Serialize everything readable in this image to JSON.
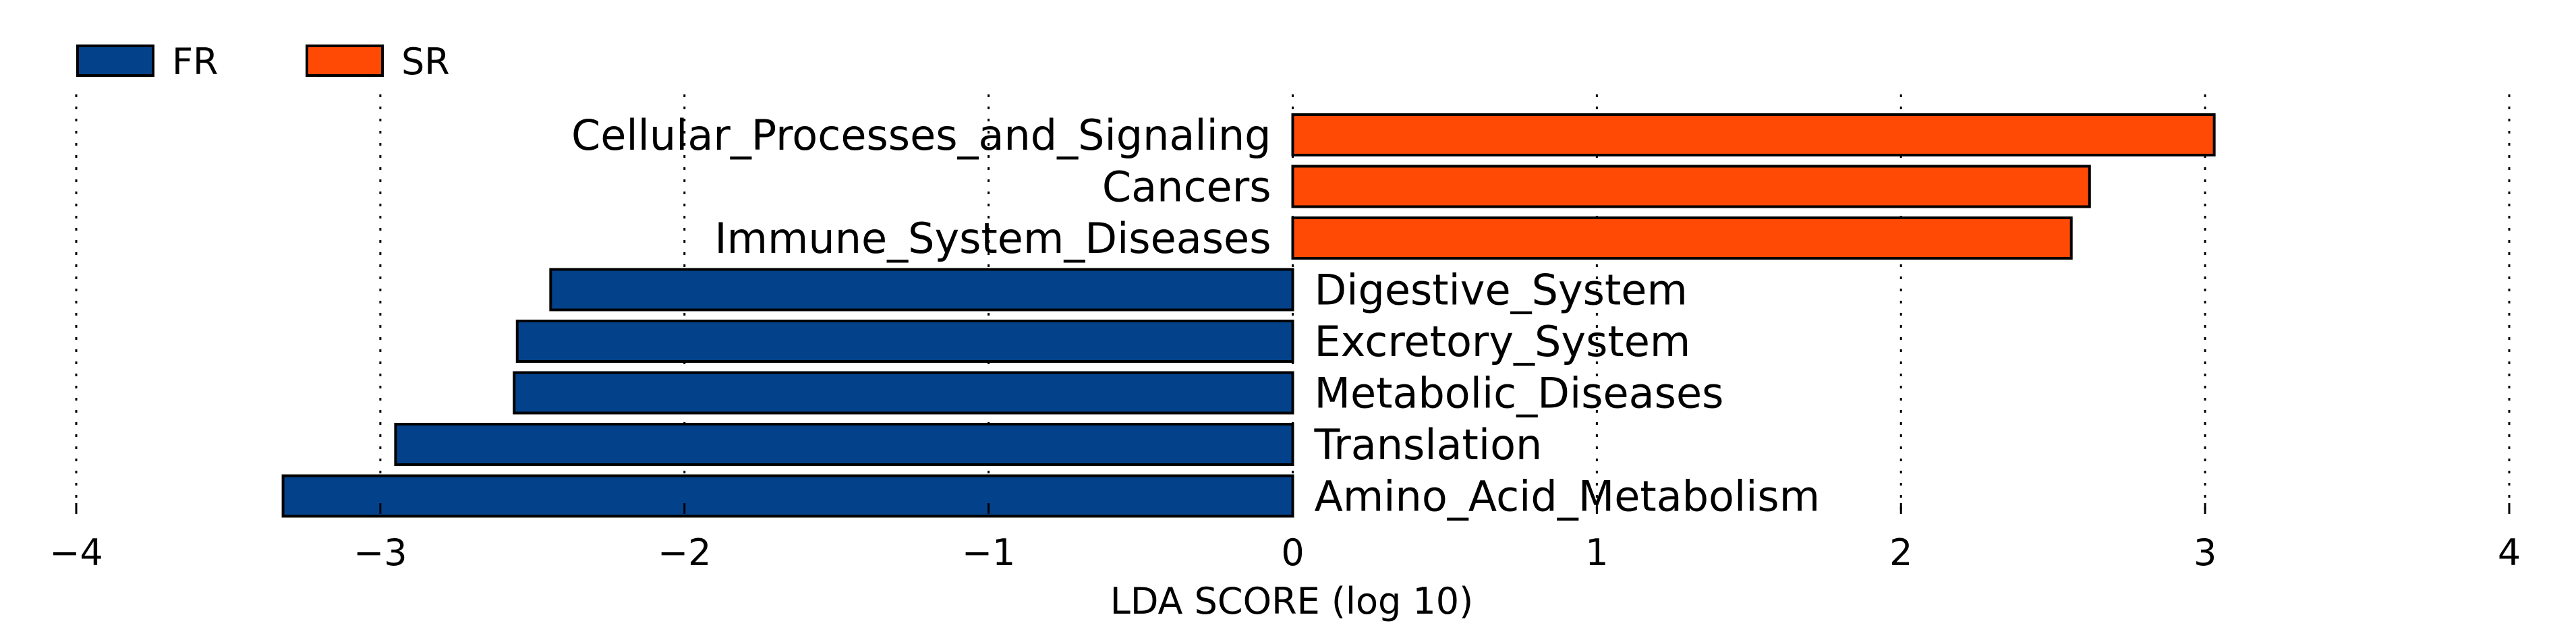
{
  "chart_data": {
    "type": "bar",
    "orientation": "horizontal",
    "title": "",
    "xlabel": "LDA SCORE (log 10)",
    "ylabel": "",
    "xlim": [
      -4,
      4
    ],
    "xticks": [
      -4,
      -3,
      -2,
      -1,
      0,
      1,
      2,
      3,
      4
    ],
    "xtick_labels": [
      "−4",
      "−3",
      "−2",
      "−1",
      "0",
      "1",
      "2",
      "3",
      "4"
    ],
    "grid": "vertical dotted",
    "legend": {
      "placement": "top-left",
      "entries": [
        {
          "name": "FR",
          "color": "#03428a"
        },
        {
          "name": "SR",
          "color": "#ff4a05"
        }
      ]
    },
    "bars": [
      {
        "label": "Cellular_Processes_and_Signaling",
        "value": 3.03,
        "group": "SR"
      },
      {
        "label": "Cancers",
        "value": 2.62,
        "group": "SR"
      },
      {
        "label": "Immune_System_Diseases",
        "value": 2.56,
        "group": "SR"
      },
      {
        "label": "Digestive_System",
        "value": -2.44,
        "group": "FR"
      },
      {
        "label": "Excretory_System",
        "value": -2.55,
        "group": "FR"
      },
      {
        "label": "Metabolic_Diseases",
        "value": -2.56,
        "group": "FR"
      },
      {
        "label": "Translation",
        "value": -2.95,
        "group": "FR"
      },
      {
        "label": "Amino_Acid_Metabolism",
        "value": -3.32,
        "group": "FR"
      }
    ]
  }
}
